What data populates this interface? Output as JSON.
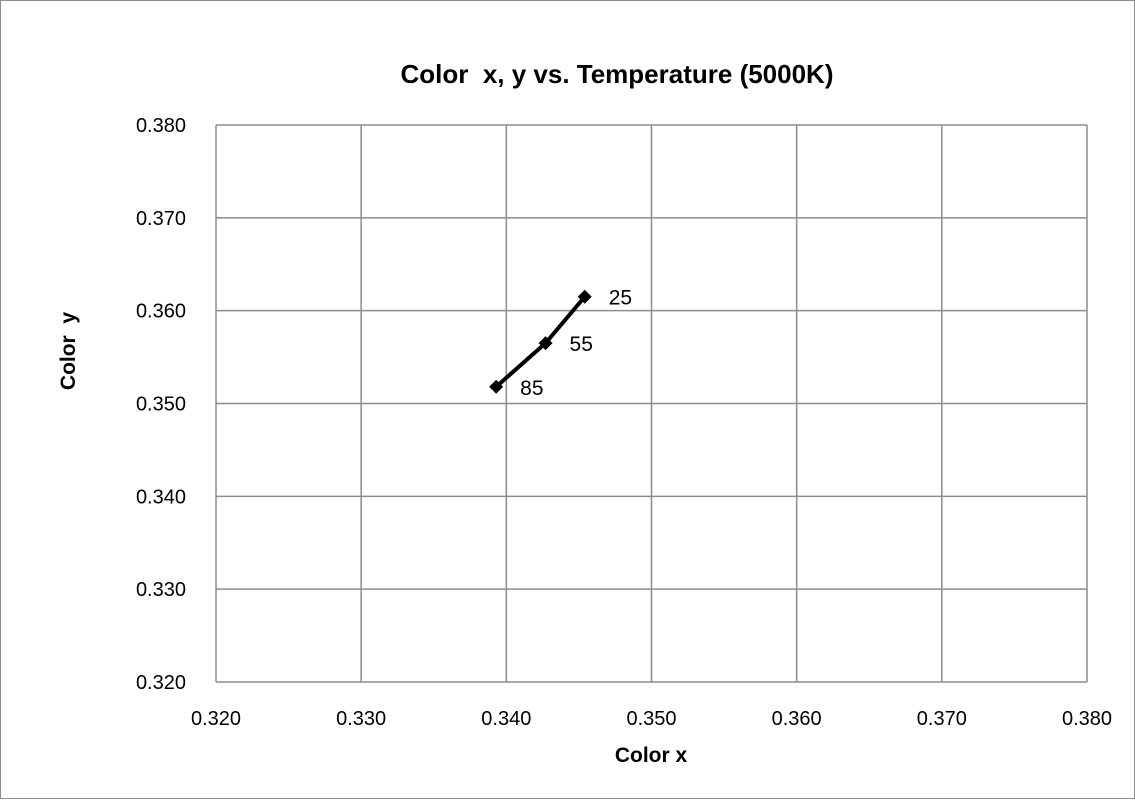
{
  "chart_data": {
    "type": "scatter",
    "title": "Color  x, y vs. Temperature (5000K)",
    "xlabel": "Color x",
    "ylabel": "Color  y",
    "xlim": [
      0.32,
      0.38
    ],
    "ylim": [
      0.32,
      0.38
    ],
    "x_ticks": [
      "0.320",
      "0.330",
      "0.340",
      "0.350",
      "0.360",
      "0.370",
      "0.380"
    ],
    "y_ticks": [
      "0.320",
      "0.330",
      "0.340",
      "0.350",
      "0.360",
      "0.370",
      "0.380"
    ],
    "x_tick_values": [
      0.32,
      0.33,
      0.34,
      0.35,
      0.36,
      0.37,
      0.38
    ],
    "y_tick_values": [
      0.32,
      0.33,
      0.34,
      0.35,
      0.36,
      0.37,
      0.38
    ],
    "grid": true,
    "legend": "none",
    "series": [
      {
        "color": "#000000",
        "marker": "diamond",
        "line": true,
        "points": [
          {
            "x": 0.3454,
            "y": 0.3615,
            "label": "25"
          },
          {
            "x": 0.3427,
            "y": 0.3565,
            "label": "55"
          },
          {
            "x": 0.3393,
            "y": 0.3518,
            "label": "85"
          }
        ]
      }
    ]
  }
}
